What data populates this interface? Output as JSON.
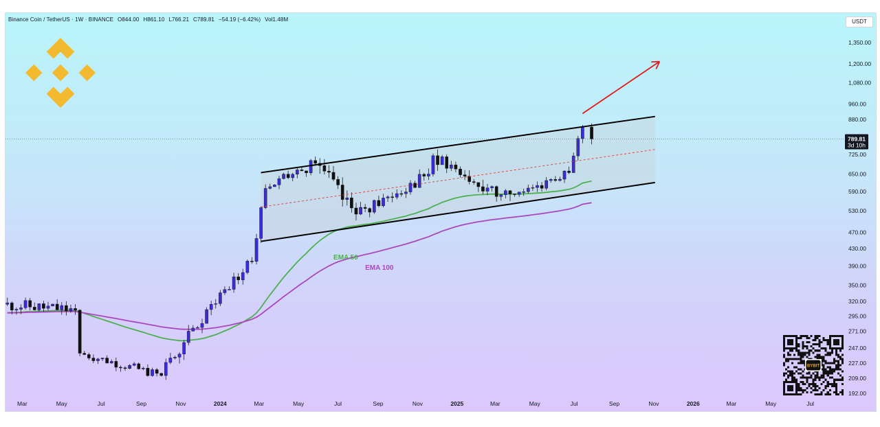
{
  "header": {
    "symbol": "Binance Coin / TetherUS · 1W · BINANCE",
    "open": "O844.00",
    "high": "H861.10",
    "low": "L766.21",
    "close": "C789.81",
    "change": "−54.19 (−6.42%)",
    "volume": "Vol1.48M"
  },
  "currency_badge": "USDT",
  "price_tag": {
    "price": "789.81",
    "countdown": "3d 10h"
  },
  "colors": {
    "bull_candle": "#3b2cd6",
    "bear_candle": "#111111",
    "ema50": "#4caf50",
    "ema100": "#ab47bc",
    "channel": "#000000",
    "midline": "#e53935",
    "arrow": "#e51919"
  },
  "logo": {
    "name": "binance-logo-icon"
  },
  "qr": {
    "name": "qr-code-icon",
    "label": "BYBIT"
  },
  "chart_data": {
    "type": "candlestick",
    "title": "",
    "timeframe": "1W",
    "y_scale": "log",
    "y_ticks": [
      "1,350.00",
      "1,200.00",
      "1,080.00",
      "960.00",
      "880.00",
      "725.00",
      "650.00",
      "590.00",
      "530.00",
      "470.00",
      "430.00",
      "390.00",
      "350.00",
      "320.00",
      "295.00",
      "271.00",
      "247.00",
      "227.00",
      "209.00",
      "192.00"
    ],
    "x_ticks": [
      "Mar",
      "May",
      "Jul",
      "Sep",
      "Nov",
      "2024",
      "Mar",
      "May",
      "Jul",
      "Sep",
      "Nov",
      "2025",
      "Mar",
      "May",
      "Jul",
      "Sep",
      "Nov",
      "2026",
      "Mar",
      "May",
      "Jul"
    ],
    "ylim": [
      192,
      1500
    ],
    "last_price": 789.81,
    "segments": [
      {
        "from": "2023-02-06",
        "to": "2023-05-29",
        "start": 315,
        "end": 305,
        "amp": 0.035,
        "seed": 11
      },
      {
        "from": "2023-05-29",
        "to": "2023-06-05",
        "start": 305,
        "end": 240,
        "amp": 0.02,
        "seed": 3
      },
      {
        "from": "2023-06-05",
        "to": "2023-10-09",
        "start": 240,
        "end": 212,
        "amp": 0.025,
        "seed": 7
      },
      {
        "from": "2023-10-09",
        "to": "2023-12-25",
        "start": 212,
        "end": 315,
        "amp": 0.04,
        "seed": 19
      },
      {
        "from": "2023-12-25",
        "to": "2024-02-26",
        "start": 315,
        "end": 400,
        "amp": 0.03,
        "seed": 23
      },
      {
        "from": "2024-02-26",
        "to": "2024-03-18",
        "start": 400,
        "end": 600,
        "amp": 0.03,
        "seed": 29
      },
      {
        "from": "2024-03-18",
        "to": "2024-06-03",
        "start": 600,
        "end": 690,
        "amp": 0.03,
        "seed": 31
      },
      {
        "from": "2024-06-03",
        "to": "2024-08-05",
        "start": 690,
        "end": 520,
        "amp": 0.05,
        "seed": 37
      },
      {
        "from": "2024-08-05",
        "to": "2024-11-25",
        "start": 520,
        "end": 650,
        "amp": 0.035,
        "seed": 41
      },
      {
        "from": "2024-11-25",
        "to": "2024-12-02",
        "start": 650,
        "end": 720,
        "amp": 0.02,
        "seed": 43
      },
      {
        "from": "2024-12-02",
        "to": "2025-02-03",
        "start": 720,
        "end": 620,
        "amp": 0.04,
        "seed": 47
      },
      {
        "from": "2025-02-03",
        "to": "2025-04-07",
        "start": 620,
        "end": 580,
        "amp": 0.045,
        "seed": 53
      },
      {
        "from": "2025-04-07",
        "to": "2025-06-30",
        "start": 580,
        "end": 655,
        "amp": 0.03,
        "seed": 59
      },
      {
        "from": "2025-06-30",
        "to": "2025-07-21",
        "start": 655,
        "end": 844,
        "amp": 0.03,
        "seed": 61
      }
    ],
    "last_candle": {
      "date": "2025-07-28",
      "o": 844.0,
      "h": 861.1,
      "l": 766.21,
      "c": 789.81
    },
    "channel": {
      "upper": {
        "from": [
          "2024-03-04",
          655
        ],
        "to": [
          "2025-11-03",
          895
        ]
      },
      "lower": {
        "from": [
          "2024-03-04",
          447
        ],
        "to": [
          "2025-11-03",
          620
        ]
      },
      "mid": {
        "from": [
          "2024-03-04",
          541
        ],
        "to": [
          "2025-11-03",
          745
        ]
      }
    },
    "series": [
      {
        "name": "EMA 50",
        "period": 50
      },
      {
        "name": "EMA 100",
        "period": 100
      }
    ],
    "annotation_arrow": {
      "from": [
        "2025-07-14",
        910
      ],
      "to": [
        "2025-11-10",
        1215
      ]
    }
  }
}
